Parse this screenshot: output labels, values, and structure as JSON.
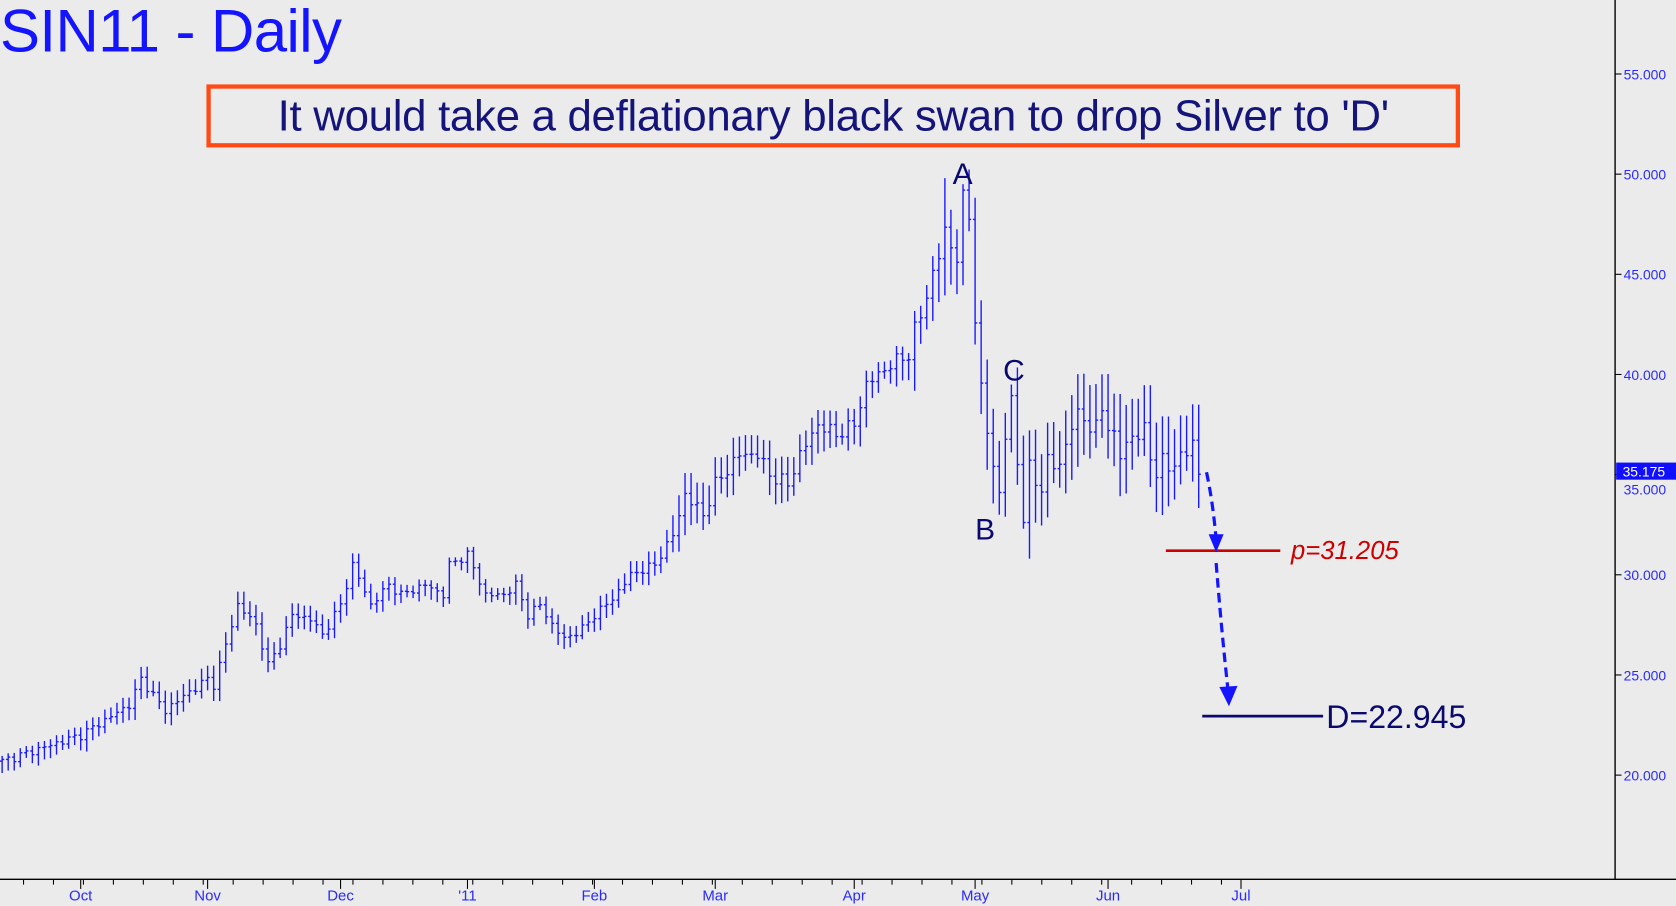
{
  "chart_data": {
    "type": "ohlc",
    "title": "SIN11 - Daily",
    "annotation_banner": "It would take a deflationary black swan to drop Silver to 'D'",
    "ylim": [
      15,
      58
    ],
    "y_ticks": [
      "20.000",
      "25.000",
      "30.000",
      "35.000",
      "40.000",
      "45.000",
      "50.000",
      "55.000"
    ],
    "y_tick_values": [
      20,
      25,
      30,
      35,
      40,
      45,
      50,
      55
    ],
    "last_price": {
      "label": "35.175",
      "value": 35.175
    },
    "x_labels": [
      "Oct",
      "Nov",
      "Dec",
      "'11",
      "Feb",
      "Mar",
      "Apr",
      "May",
      "Jun",
      "Jul"
    ],
    "x_label_days": [
      13,
      34,
      56,
      77,
      98,
      118,
      141,
      161,
      183,
      205
    ],
    "series_anchor_note": "close path by trading-day index",
    "path": [
      [
        0,
        20.7
      ],
      [
        13,
        22.0
      ],
      [
        21,
        23.5
      ],
      [
        23,
        24.8
      ],
      [
        27,
        23.2
      ],
      [
        28,
        23.5
      ],
      [
        34,
        24.8
      ],
      [
        35,
        24.5
      ],
      [
        37,
        26.5
      ],
      [
        39,
        28.5
      ],
      [
        42,
        27.5
      ],
      [
        44,
        25.5
      ],
      [
        46,
        26.5
      ],
      [
        48,
        28.0
      ],
      [
        51,
        27.8
      ],
      [
        53,
        27.0
      ],
      [
        56,
        28.5
      ],
      [
        58,
        30.5
      ],
      [
        61,
        28.5
      ],
      [
        64,
        29.5
      ],
      [
        66,
        29.0
      ],
      [
        70,
        29.5
      ],
      [
        73,
        29.0
      ],
      [
        74,
        30.5
      ],
      [
        77,
        31.0
      ],
      [
        80,
        29.0
      ],
      [
        83,
        29.0
      ],
      [
        85,
        29.5
      ],
      [
        87,
        28.0
      ],
      [
        89,
        28.5
      ],
      [
        91,
        27.5
      ],
      [
        93,
        26.8
      ],
      [
        96,
        27.3
      ],
      [
        98,
        28.0
      ],
      [
        101,
        28.8
      ],
      [
        104,
        30.0
      ],
      [
        108,
        30.5
      ],
      [
        111,
        32.0
      ],
      [
        113,
        34.0
      ],
      [
        116,
        33.0
      ],
      [
        118,
        34.5
      ],
      [
        122,
        36.0
      ],
      [
        125,
        36.0
      ],
      [
        127,
        35.0
      ],
      [
        130,
        34.5
      ],
      [
        132,
        36.0
      ],
      [
        135,
        37.5
      ],
      [
        138,
        37.0
      ],
      [
        141,
        37.5
      ],
      [
        143,
        39.5
      ],
      [
        147,
        40.5
      ],
      [
        150,
        41.0
      ],
      [
        152,
        43.0
      ],
      [
        154,
        45.0
      ],
      [
        156,
        47.0
      ],
      [
        158,
        46.0
      ],
      [
        159,
        48.5
      ],
      [
        160,
        48.0
      ],
      [
        161,
        43.0
      ],
      [
        162,
        39.0
      ],
      [
        164,
        35.5
      ],
      [
        165,
        34.0
      ],
      [
        166,
        37.0
      ],
      [
        167,
        38.5
      ],
      [
        169,
        33.0
      ],
      [
        170,
        35.0
      ],
      [
        172,
        34.5
      ],
      [
        173,
        35.5
      ],
      [
        175,
        35.5
      ],
      [
        177,
        37.5
      ],
      [
        179,
        38.0
      ],
      [
        181,
        37.0
      ],
      [
        182,
        38.5
      ],
      [
        183,
        37.5
      ],
      [
        185,
        36.0
      ],
      [
        187,
        37.0
      ],
      [
        189,
        37.0
      ],
      [
        191,
        35.2
      ],
      [
        193,
        35.5
      ],
      [
        195,
        35.8
      ],
      [
        197,
        36.5
      ],
      [
        198,
        35.2
      ]
    ],
    "wave_labels": [
      {
        "text": "A",
        "value": 49.8
      },
      {
        "text": "B",
        "value": 32.3
      },
      {
        "text": "C",
        "value": 39.5
      }
    ],
    "targets": [
      {
        "label": "p=31.205",
        "value": 31.205,
        "color": "#cc0000"
      },
      {
        "label": "D=22.945",
        "value": 22.945,
        "color": "#0a0a6e"
      }
    ]
  },
  "colors": {
    "bars": "#1a1aff",
    "axis": "#000000",
    "tick_text": "#2a2aff"
  }
}
